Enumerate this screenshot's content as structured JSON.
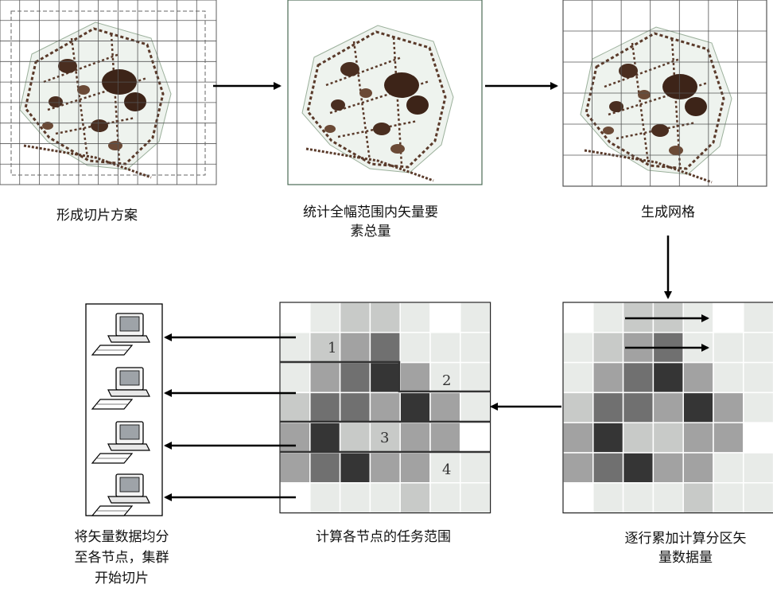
{
  "captions": {
    "step1": "形成切片方案",
    "step2_line1": "统计全幅范围内矢量要",
    "step2_line2": "素总量",
    "step3": "生成网格",
    "step4_line1": "逐行累加计算分区矢",
    "step4_line2": "量数据量",
    "step5": "计算各节点的任务范围",
    "step6_line1": "将矢量数据均分",
    "step6_line2": "至各节点，集群",
    "step6_line3": "开始切片"
  },
  "partition_labels": [
    "1",
    "2",
    "3",
    "4"
  ],
  "shade_palette": [
    "#ffffff",
    "#e8ebe8",
    "#c8cac8",
    "#a2a2a2",
    "#707070",
    "#353535"
  ],
  "heat_grid": [
    [
      0,
      1,
      2,
      2,
      1,
      0,
      1
    ],
    [
      1,
      2,
      3,
      4,
      1,
      1,
      1
    ],
    [
      1,
      3,
      4,
      5,
      3,
      1,
      1
    ],
    [
      2,
      4,
      4,
      3,
      5,
      3,
      1
    ],
    [
      3,
      5,
      2,
      2,
      3,
      3,
      0
    ],
    [
      3,
      4,
      5,
      3,
      3,
      1,
      1
    ],
    [
      0,
      1,
      1,
      1,
      2,
      1,
      1
    ]
  ],
  "computer_count": 4
}
